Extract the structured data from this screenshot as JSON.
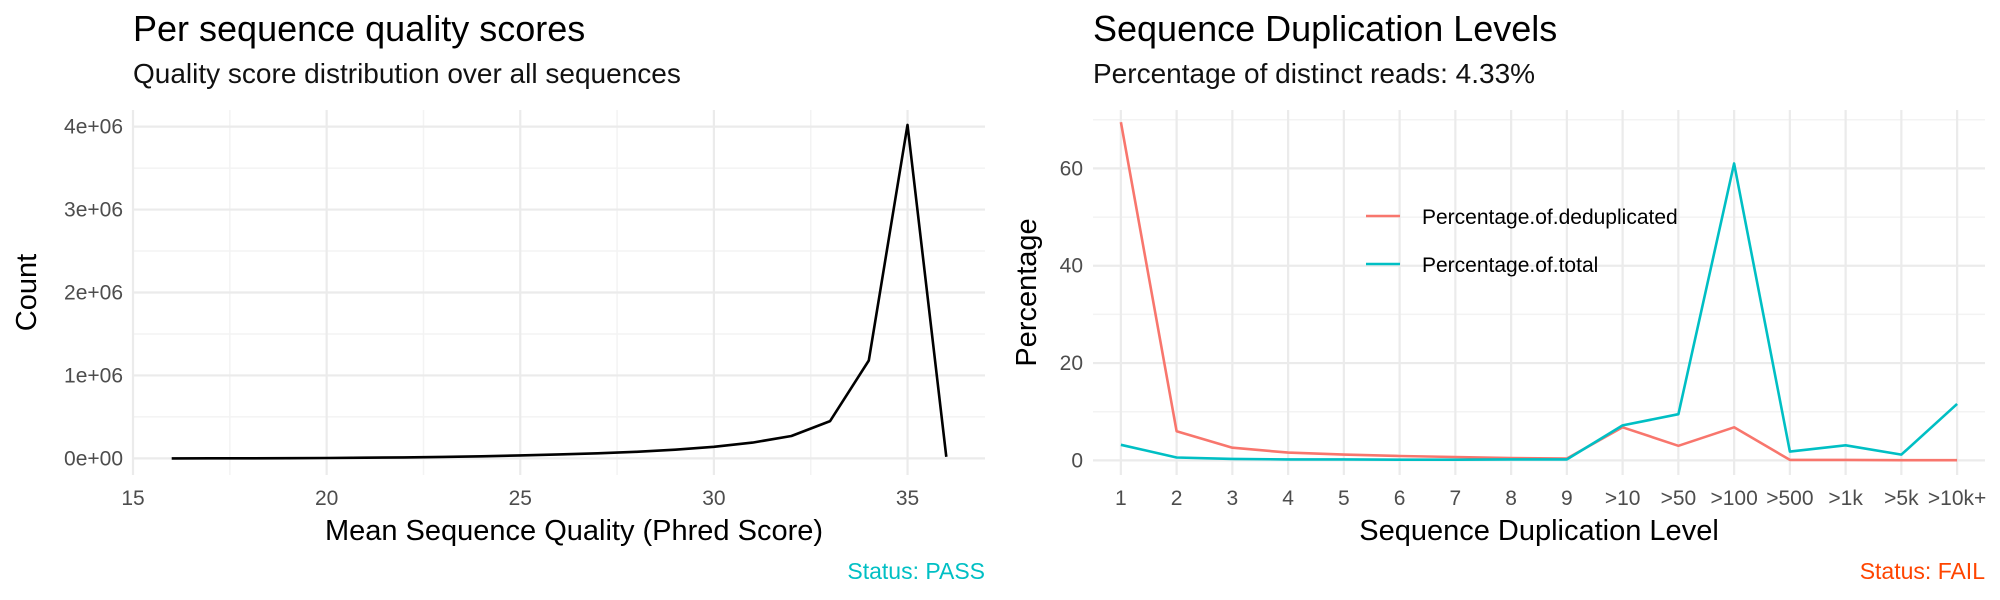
{
  "colors": {
    "line_black": "#000000",
    "deduplicated": "#F8766D",
    "total": "#00BFC4",
    "status_pass": "#00BFC4",
    "status_fail": "#FF4500",
    "grid_major": "#EBEBEB",
    "grid_minor": "#F3F3F3"
  },
  "left": {
    "title": "Per sequence quality scores",
    "subtitle": "Quality score distribution over all sequences",
    "status": "Status: PASS"
  },
  "right": {
    "title": "Sequence Duplication Levels",
    "subtitle": "Percentage of distinct reads: 4.33%",
    "status": "Status: FAIL"
  },
  "chart_data": [
    {
      "type": "line",
      "title": "Per sequence quality scores",
      "subtitle": "Quality score distribution over all sequences",
      "xlabel": "Mean Sequence Quality (Phred Score)",
      "ylabel": "Count",
      "xlim": [
        15,
        37
      ],
      "ylim": [
        -200000,
        4200000
      ],
      "x_ticks": [
        15,
        20,
        25,
        30,
        35
      ],
      "y_ticks": [
        0,
        1000000,
        2000000,
        3000000,
        4000000
      ],
      "y_tick_labels": [
        "0e+00",
        "1e+06",
        "2e+06",
        "3e+06",
        "4e+06"
      ],
      "grid": true,
      "series": [
        {
          "x": [
            16,
            17,
            18,
            19,
            20,
            21,
            22,
            23,
            24,
            25,
            26,
            27,
            28,
            29,
            30,
            31,
            32,
            33,
            34,
            35,
            36
          ],
          "values": [
            500,
            1000,
            1500,
            3000,
            5000,
            8000,
            12000,
            18000,
            26000,
            36000,
            48000,
            62000,
            80000,
            105000,
            140000,
            190000,
            270000,
            450000,
            1180000,
            4020000,
            20000
          ]
        }
      ]
    },
    {
      "type": "line",
      "title": "Sequence Duplication Levels",
      "subtitle": "Percentage of distinct reads: 4.33%",
      "xlabel": "Sequence Duplication Level",
      "ylabel": "Percentage",
      "categories": [
        "1",
        "2",
        "3",
        "4",
        "5",
        "6",
        "7",
        "8",
        "9",
        ">10",
        ">50",
        ">100",
        ">500",
        ">1k",
        ">5k",
        ">10k+"
      ],
      "ylim": [
        -3,
        72
      ],
      "y_ticks": [
        0,
        20,
        40,
        60
      ],
      "grid": true,
      "legend_position": "inside-top",
      "series": [
        {
          "name": "Percentage.of.deduplicated",
          "color": "#F8766D",
          "values": [
            69.5,
            6.0,
            2.6,
            1.6,
            1.2,
            0.9,
            0.7,
            0.5,
            0.4,
            6.8,
            3.0,
            6.8,
            0.1,
            0.1,
            0.05,
            0.05
          ]
        },
        {
          "name": "Percentage.of.total",
          "color": "#00BFC4",
          "values": [
            3.2,
            0.6,
            0.3,
            0.2,
            0.2,
            0.15,
            0.15,
            0.2,
            0.2,
            7.2,
            9.5,
            61.0,
            1.8,
            3.1,
            1.2,
            11.6
          ]
        }
      ]
    }
  ]
}
